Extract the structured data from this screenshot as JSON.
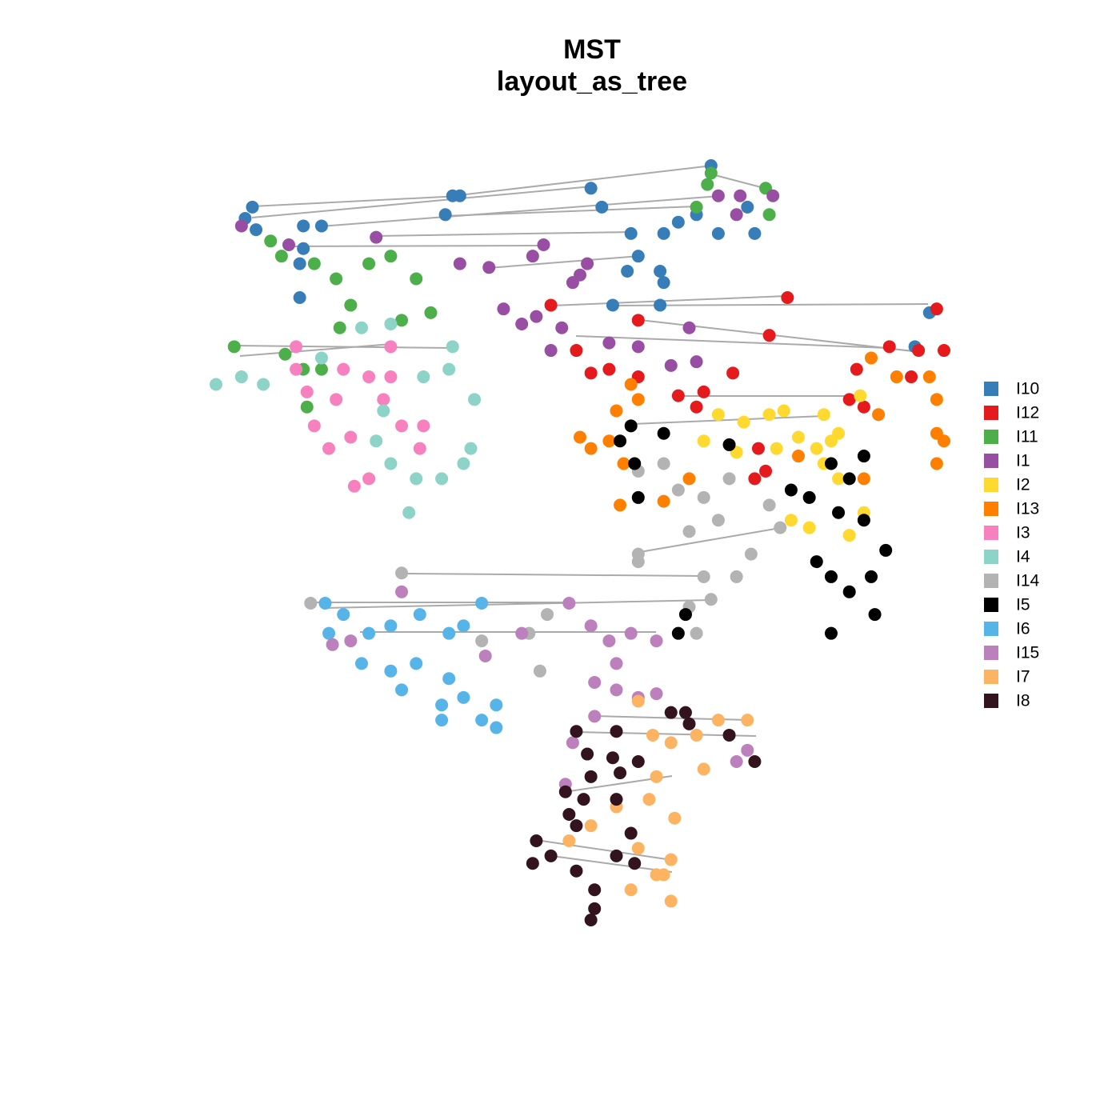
{
  "chart_data": {
    "type": "scatter",
    "title": "MST",
    "subtitle": "layout_as_tree",
    "xlim": [
      -1,
      1
    ],
    "ylim": [
      -1,
      1
    ],
    "legend": "right",
    "series": [
      {
        "name": "I10",
        "color": "#377eb8",
        "x": [
          0.36,
          0.03,
          -0.35,
          -0.33,
          -0.37,
          0.06,
          -0.9,
          -0.92,
          -0.89,
          -0.76,
          -0.71,
          -0.76,
          -0.77,
          -0.77,
          0.14,
          0.16,
          0.13,
          0.23,
          0.27,
          0.32,
          0.38,
          0.48,
          0.22,
          0.23,
          0.09,
          0.22,
          0.96,
          0.92,
          0.46
        ],
        "values": [
          1.0,
          0.94,
          0.92,
          0.92,
          0.87,
          0.89,
          0.89,
          0.86,
          0.83,
          0.84,
          0.84,
          0.78,
          0.74,
          0.65,
          0.82,
          0.76,
          0.72,
          0.82,
          0.85,
          0.87,
          0.82,
          0.82,
          0.72,
          0.69,
          0.63,
          0.63,
          0.61,
          0.52,
          0.89
        ]
      },
      {
        "name": "I12",
        "color": "#e41a1c",
        "x": [
          0.57,
          0.98,
          0.52,
          1.0,
          0.93,
          0.85,
          0.76,
          0.91,
          -0.08,
          0.16,
          -0.01,
          0.03,
          0.08,
          0.16,
          0.27,
          0.34,
          0.42,
          0.32,
          0.49,
          0.51,
          0.48,
          0.78,
          0.74
        ],
        "values": [
          0.65,
          0.62,
          0.55,
          0.51,
          0.51,
          0.52,
          0.46,
          0.44,
          0.63,
          0.59,
          0.51,
          0.45,
          0.46,
          0.44,
          0.39,
          0.4,
          0.45,
          0.36,
          0.25,
          0.19,
          0.17,
          0.36,
          0.38
        ]
      },
      {
        "name": "I11",
        "color": "#4daf4a",
        "x": [
          0.36,
          0.35,
          0.51,
          0.52,
          0.32,
          -0.85,
          -0.82,
          -0.73,
          -0.67,
          -0.63,
          -0.66,
          -0.58,
          -0.52,
          -0.45,
          -0.41,
          -0.49,
          -0.95,
          -0.81,
          -0.76,
          -0.71,
          -0.75
        ],
        "values": [
          0.98,
          0.95,
          0.94,
          0.87,
          0.89,
          0.8,
          0.76,
          0.74,
          0.7,
          0.63,
          0.57,
          0.74,
          0.76,
          0.7,
          0.61,
          0.59,
          0.52,
          0.5,
          0.46,
          0.46,
          0.36
        ]
      },
      {
        "name": "I1",
        "color": "#984ea3",
        "x": [
          -0.93,
          -0.56,
          -0.8,
          -0.1,
          -0.33,
          -0.25,
          -0.13,
          0.0,
          0.38,
          0.44,
          0.53,
          0.43,
          -0.21,
          -0.16,
          -0.12,
          -0.05,
          -0.08,
          0.08,
          0.16,
          0.25,
          0.3,
          0.32,
          0.02,
          -0.02
        ],
        "values": [
          0.84,
          0.81,
          0.79,
          0.79,
          0.74,
          0.73,
          0.76,
          0.71,
          0.92,
          0.92,
          0.92,
          0.87,
          0.62,
          0.58,
          0.6,
          0.57,
          0.51,
          0.53,
          0.52,
          0.47,
          0.57,
          0.48,
          0.74,
          0.69
        ]
      },
      {
        "name": "I2",
        "color": "#ffd92f",
        "x": [
          0.77,
          0.38,
          0.45,
          0.52,
          0.56,
          0.67,
          0.71,
          0.34,
          0.43,
          0.54,
          0.6,
          0.65,
          0.69,
          0.67,
          0.71,
          0.58,
          0.63,
          0.74,
          0.78
        ],
        "values": [
          0.39,
          0.34,
          0.32,
          0.34,
          0.35,
          0.34,
          0.29,
          0.27,
          0.24,
          0.25,
          0.28,
          0.25,
          0.27,
          0.21,
          0.17,
          0.06,
          0.04,
          0.02,
          0.08
        ]
      },
      {
        "name": "I13",
        "color": "#ff7f00",
        "x": [
          0.8,
          0.87,
          0.96,
          0.98,
          0.82,
          0.98,
          1.0,
          0.98,
          0.14,
          0.16,
          0.1,
          0.0,
          0.03,
          0.08,
          0.12,
          0.11,
          0.23,
          0.3,
          0.78,
          0.6
        ],
        "values": [
          0.49,
          0.44,
          0.44,
          0.38,
          0.34,
          0.29,
          0.27,
          0.21,
          0.42,
          0.38,
          0.35,
          0.28,
          0.25,
          0.27,
          0.21,
          0.1,
          0.11,
          0.17,
          0.17,
          0.23
        ]
      },
      {
        "name": "I3",
        "color": "#f781bf",
        "x": [
          -0.78,
          -0.78,
          -0.75,
          -0.65,
          -0.58,
          -0.52,
          -0.52,
          -0.54,
          -0.49,
          -0.73,
          -0.69,
          -0.63,
          -0.58,
          -0.43,
          -0.44,
          -0.62,
          -0.67
        ],
        "values": [
          0.52,
          0.46,
          0.4,
          0.46,
          0.44,
          0.52,
          0.44,
          0.38,
          0.31,
          0.31,
          0.25,
          0.28,
          0.17,
          0.31,
          0.25,
          0.15,
          0.38
        ]
      },
      {
        "name": "I4",
        "color": "#8dd3c7",
        "x": [
          -1.0,
          -0.93,
          -0.87,
          -0.71,
          -0.6,
          -0.52,
          -0.35,
          -0.36,
          -0.43,
          -0.54,
          -0.56,
          -0.52,
          -0.45,
          -0.47,
          -0.38,
          -0.32,
          -0.29,
          -0.3
        ],
        "values": [
          0.42,
          0.44,
          0.42,
          0.49,
          0.57,
          0.58,
          0.52,
          0.46,
          0.44,
          0.35,
          0.27,
          0.21,
          0.17,
          0.08,
          0.17,
          0.21,
          0.38,
          0.25
        ]
      },
      {
        "name": "I14",
        "color": "#b3b3b3",
        "x": [
          0.16,
          0.23,
          0.27,
          0.34,
          0.38,
          0.41,
          0.3,
          0.16,
          0.16,
          0.52,
          0.55,
          0.47,
          0.43,
          0.34,
          0.36,
          0.3,
          0.32,
          -0.49,
          -0.74,
          -0.09,
          -0.14,
          -0.11,
          -0.27
        ],
        "values": [
          0.19,
          0.21,
          0.14,
          0.12,
          0.06,
          0.17,
          0.03,
          -0.03,
          -0.05,
          0.1,
          0.04,
          -0.03,
          -0.09,
          -0.09,
          -0.15,
          -0.17,
          -0.24,
          -0.08,
          -0.16,
          -0.19,
          -0.24,
          -0.34,
          -0.26
        ]
      },
      {
        "name": "I5",
        "color": "#000000",
        "x": [
          0.14,
          0.11,
          0.15,
          0.16,
          0.23,
          0.41,
          0.58,
          0.63,
          0.69,
          0.74,
          0.78,
          0.71,
          0.78,
          0.65,
          0.69,
          0.74,
          0.69,
          0.8,
          0.84,
          0.81,
          0.29,
          0.27
        ],
        "values": [
          0.31,
          0.27,
          0.21,
          0.12,
          0.29,
          0.26,
          0.14,
          0.12,
          0.21,
          0.17,
          0.23,
          0.08,
          0.06,
          -0.05,
          -0.09,
          -0.13,
          -0.24,
          -0.09,
          -0.02,
          -0.19,
          -0.19,
          -0.24
        ]
      },
      {
        "name": "I6",
        "color": "#56b4e9",
        "x": [
          -0.7,
          -0.65,
          -0.58,
          -0.52,
          -0.44,
          -0.36,
          -0.32,
          -0.27,
          -0.6,
          -0.52,
          -0.45,
          -0.36,
          -0.38,
          -0.32,
          -0.23,
          -0.27,
          -0.38,
          -0.23,
          -0.49,
          -0.69
        ],
        "values": [
          -0.16,
          -0.19,
          -0.24,
          -0.22,
          -0.19,
          -0.24,
          -0.22,
          -0.16,
          -0.32,
          -0.34,
          -0.32,
          -0.36,
          -0.43,
          -0.41,
          -0.43,
          -0.47,
          -0.47,
          -0.49,
          -0.39,
          -0.24
        ]
      },
      {
        "name": "I15",
        "color": "#bc80bd",
        "x": [
          -0.49,
          -0.68,
          -0.63,
          -0.26,
          -0.16,
          -0.03,
          0.03,
          0.08,
          0.1,
          0.14,
          0.04,
          0.1,
          0.16,
          0.21,
          0.04,
          -0.02,
          -0.04,
          0.43,
          0.46,
          0.21
        ],
        "values": [
          -0.13,
          -0.27,
          -0.26,
          -0.3,
          -0.24,
          -0.16,
          -0.22,
          -0.26,
          -0.32,
          -0.24,
          -0.37,
          -0.39,
          -0.41,
          -0.4,
          -0.46,
          -0.53,
          -0.64,
          -0.58,
          -0.55,
          -0.26
        ]
      },
      {
        "name": "I7",
        "color": "#fdb462",
        "x": [
          0.16,
          0.2,
          0.25,
          0.32,
          0.38,
          0.46,
          0.34,
          0.21,
          0.19,
          0.26,
          0.1,
          0.03,
          -0.03,
          0.16,
          0.25,
          0.21,
          0.14,
          0.25,
          0.23
        ],
        "values": [
          -0.42,
          -0.51,
          -0.53,
          -0.51,
          -0.47,
          -0.47,
          -0.6,
          -0.62,
          -0.68,
          -0.73,
          -0.7,
          -0.75,
          -0.79,
          -0.81,
          -0.84,
          -0.88,
          -0.92,
          -0.95,
          -0.88
        ]
      },
      {
        "name": "I8",
        "color": "#33141e",
        "x": [
          0.25,
          0.29,
          0.3,
          0.1,
          -0.01,
          0.02,
          0.09,
          0.03,
          0.11,
          -0.04,
          0.01,
          0.1,
          -0.01,
          -0.03,
          0.14,
          -0.12,
          -0.13,
          -0.08,
          -0.01,
          0.04,
          0.1,
          0.15,
          0.04,
          0.03,
          0.48,
          0.41,
          0.16
        ],
        "values": [
          -0.45,
          -0.45,
          -0.48,
          -0.5,
          -0.5,
          -0.56,
          -0.57,
          -0.62,
          -0.61,
          -0.66,
          -0.68,
          -0.68,
          -0.75,
          -0.72,
          -0.77,
          -0.79,
          -0.85,
          -0.83,
          -0.87,
          -0.92,
          -0.83,
          -0.85,
          -0.97,
          -1.0,
          -0.58,
          -0.51,
          -0.58
        ]
      }
    ]
  }
}
